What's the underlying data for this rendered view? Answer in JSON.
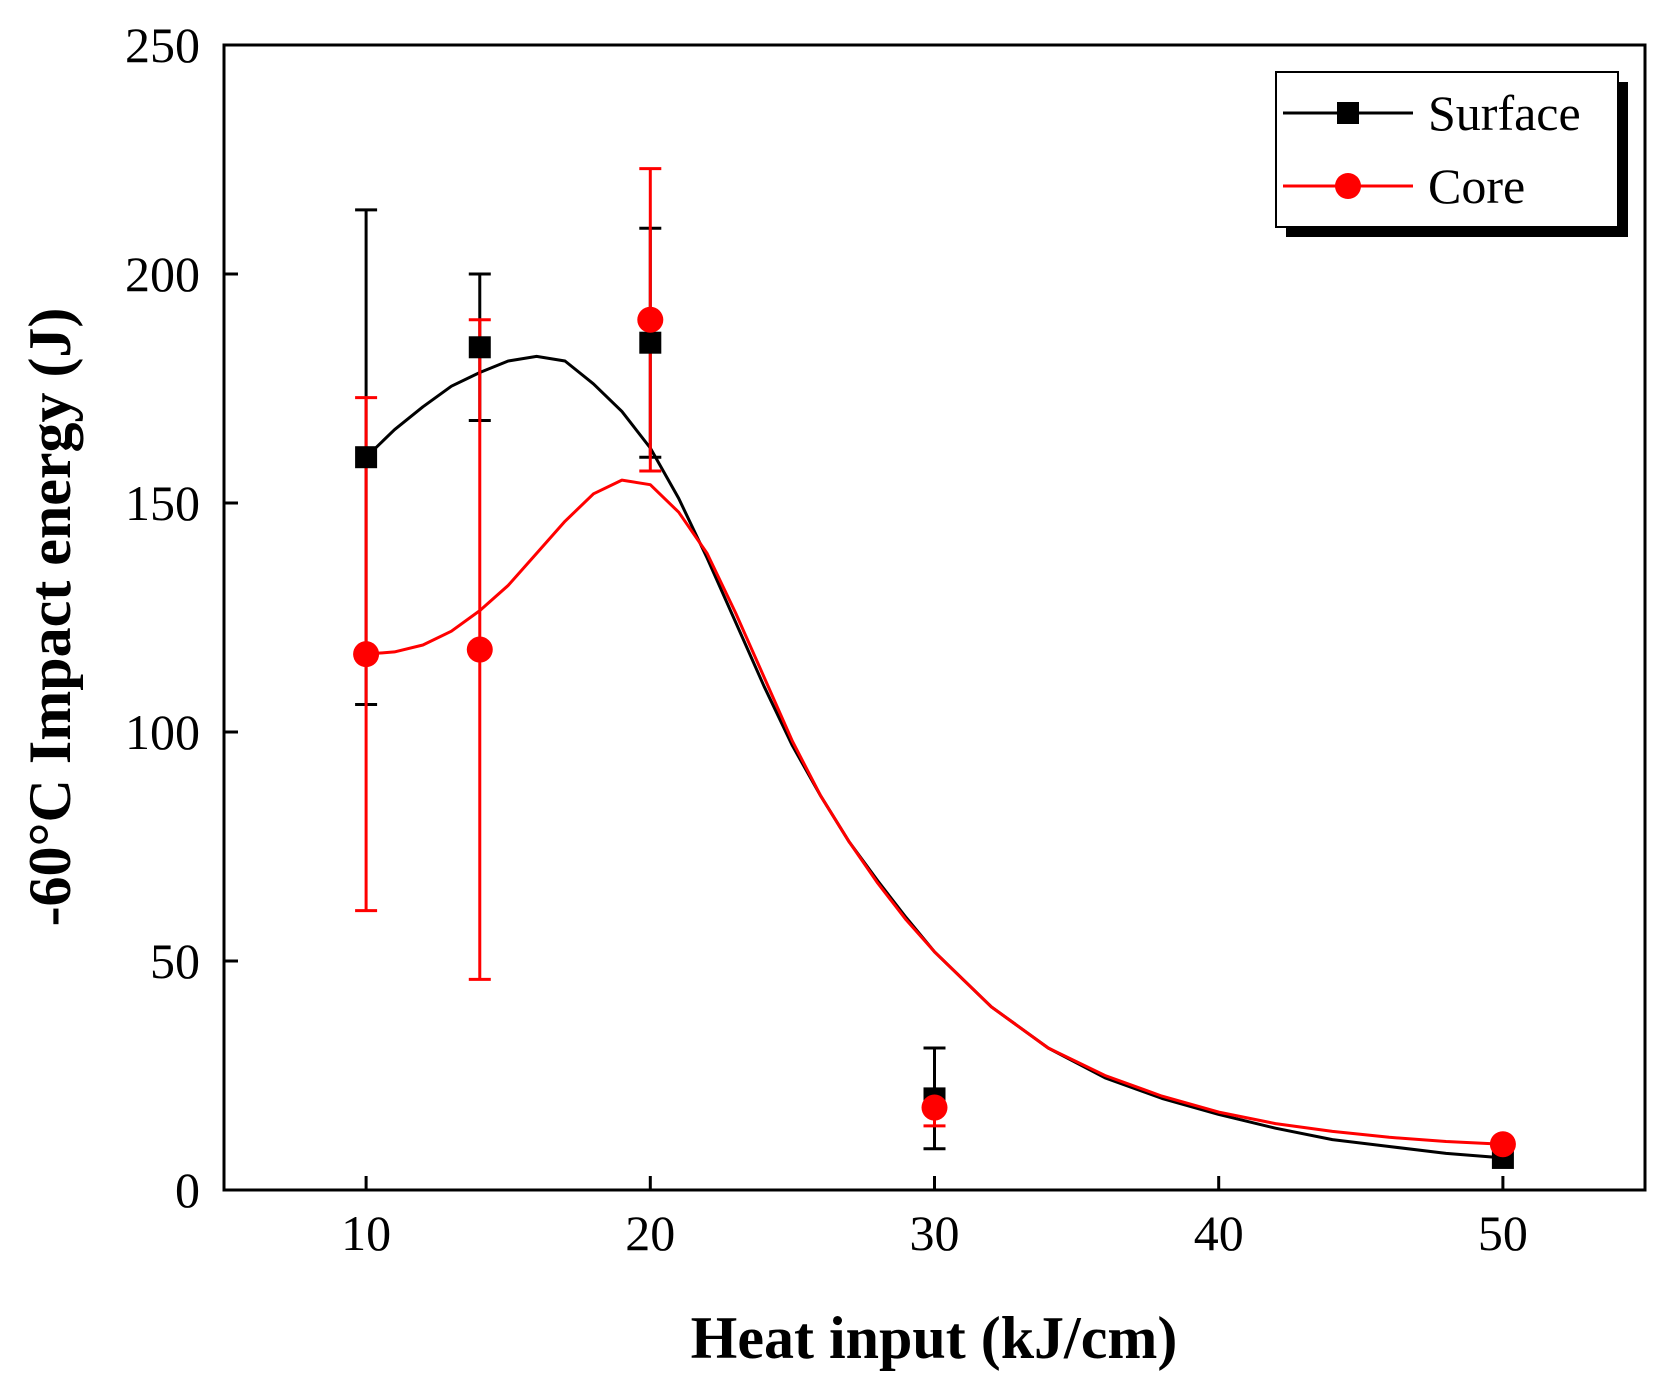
{
  "chart_data": {
    "type": "scatter",
    "xlabel": "Heat input (kJ/cm)",
    "ylabel": "-60°C Impact energy (J)",
    "xlim": [
      5,
      55
    ],
    "ylim": [
      0,
      250
    ],
    "xticks": [
      10,
      20,
      30,
      40,
      50
    ],
    "yticks": [
      0,
      50,
      100,
      150,
      200,
      250
    ],
    "xtick_labels": [
      "10",
      "20",
      "30",
      "40",
      "50"
    ],
    "ytick_labels": [
      "0",
      "50",
      "100",
      "150",
      "200",
      "250"
    ],
    "grid": false,
    "legend_position": "top-right",
    "series": [
      {
        "name": "Surface",
        "color": "#000000",
        "marker": "square",
        "x": [
          10,
          14,
          20,
          30,
          50
        ],
        "y": [
          160,
          184,
          185,
          20,
          7
        ],
        "error": [
          54,
          16,
          25,
          11,
          0
        ],
        "fit_curve": [
          [
            10,
            160
          ],
          [
            11,
            166
          ],
          [
            12,
            171
          ],
          [
            13,
            175.5
          ],
          [
            14,
            178.5
          ],
          [
            15,
            181
          ],
          [
            16,
            182
          ],
          [
            17,
            181
          ],
          [
            18,
            176
          ],
          [
            19,
            170
          ],
          [
            20,
            162
          ],
          [
            21,
            151
          ],
          [
            22,
            138
          ],
          [
            23,
            124
          ],
          [
            24,
            110
          ],
          [
            25,
            97
          ],
          [
            26,
            86
          ],
          [
            27,
            76
          ],
          [
            28,
            67.5
          ],
          [
            29,
            59.5
          ],
          [
            30,
            52
          ],
          [
            32,
            40
          ],
          [
            34,
            31
          ],
          [
            36,
            24.5
          ],
          [
            38,
            20
          ],
          [
            40,
            16.5
          ],
          [
            42,
            13.5
          ],
          [
            44,
            11
          ],
          [
            46,
            9.5
          ],
          [
            48,
            8
          ],
          [
            50,
            7
          ]
        ]
      },
      {
        "name": "Core",
        "color": "#ff0000",
        "marker": "circle",
        "x": [
          10,
          14,
          20,
          30,
          50
        ],
        "y": [
          117,
          118,
          190,
          18,
          10
        ],
        "error": [
          56,
          72,
          33,
          4,
          0
        ],
        "fit_curve": [
          [
            10,
            117
          ],
          [
            11,
            117.5
          ],
          [
            12,
            119
          ],
          [
            13,
            122
          ],
          [
            14,
            126.5
          ],
          [
            15,
            132
          ],
          [
            16,
            139
          ],
          [
            17,
            146
          ],
          [
            18,
            152
          ],
          [
            19,
            155
          ],
          [
            20,
            154
          ],
          [
            21,
            148
          ],
          [
            22,
            139
          ],
          [
            23,
            126
          ],
          [
            24,
            112
          ],
          [
            25,
            98
          ],
          [
            26,
            86
          ],
          [
            27,
            76
          ],
          [
            28,
            67
          ],
          [
            29,
            59
          ],
          [
            30,
            52
          ],
          [
            32,
            40
          ],
          [
            34,
            31
          ],
          [
            36,
            25
          ],
          [
            38,
            20.5
          ],
          [
            40,
            17
          ],
          [
            42,
            14.5
          ],
          [
            44,
            12.8
          ],
          [
            46,
            11.5
          ],
          [
            48,
            10.6
          ],
          [
            50,
            10
          ]
        ]
      }
    ]
  }
}
